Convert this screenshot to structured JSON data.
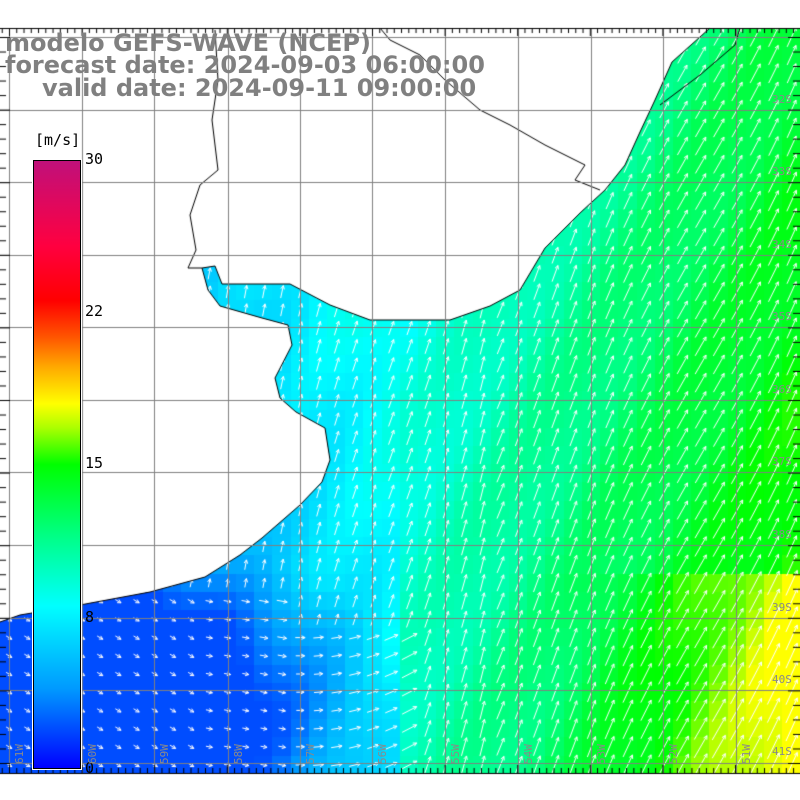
{
  "title": {
    "model": "modelo GEFS-WAVE (NCEP)",
    "forecast": "forecast date: 2024-09-03 06:00:00",
    "valid": "valid date: 2024-09-11 09:00:00"
  },
  "colorbar": {
    "unit": "[m/s]",
    "labels": [
      "30",
      "22",
      "15",
      "8",
      "0"
    ],
    "range": [
      0,
      30
    ]
  },
  "axes": {
    "lat_labels": [
      "32S",
      "33S",
      "34S",
      "35S",
      "36S",
      "37S",
      "38S",
      "39S",
      "40S",
      "41S"
    ],
    "lon_labels": [
      "61W",
      "60W",
      "59W",
      "58W",
      "57W",
      "56W",
      "55W",
      "54W",
      "53W",
      "52W",
      "51W"
    ]
  },
  "colors": {
    "land": "#ffffff",
    "coast": "#000000",
    "grid": "#808080",
    "arrow": "#ffffff"
  }
}
